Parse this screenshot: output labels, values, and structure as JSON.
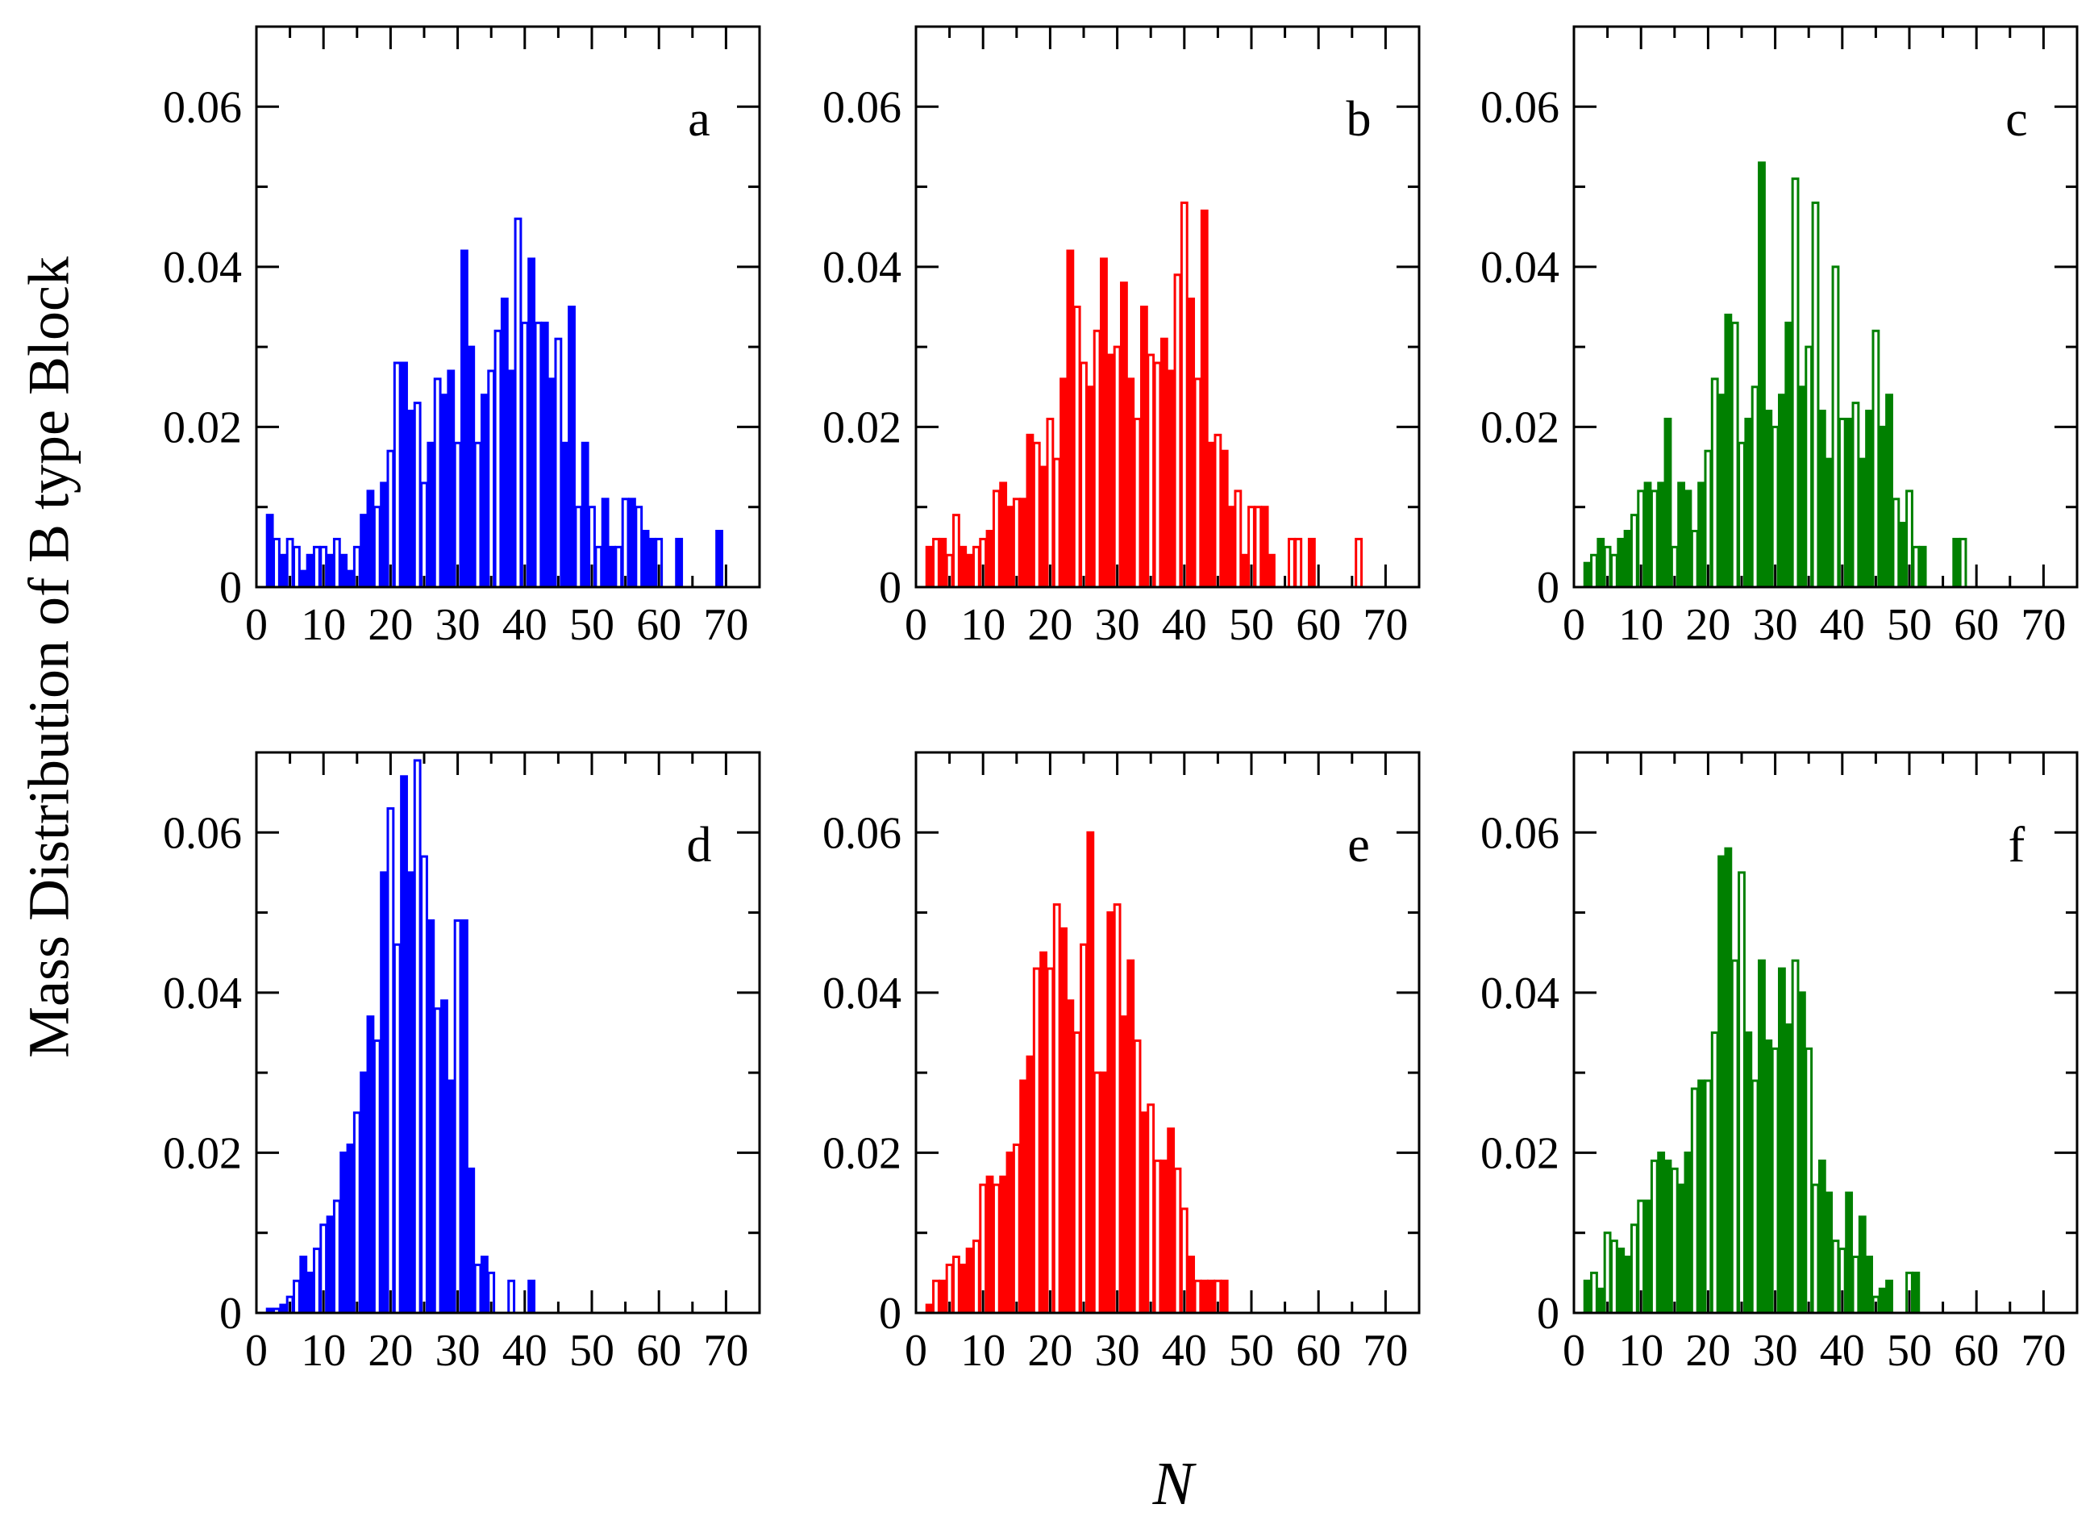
{
  "figure": {
    "ylabel": "Mass Distribution of B type Block",
    "xlabel": "N"
  },
  "chart_data": [
    {
      "type": "bar",
      "panel": "a",
      "color": "#0000ff",
      "xlim": [
        0,
        75
      ],
      "ylim": [
        0,
        0.07
      ],
      "xticks": [
        0,
        10,
        20,
        30,
        40,
        50,
        60,
        70
      ],
      "yticks": [
        0,
        0.02,
        0.04,
        0.06
      ],
      "x": [
        2,
        3,
        4,
        5,
        6,
        7,
        8,
        9,
        10,
        11,
        12,
        13,
        14,
        15,
        16,
        17,
        18,
        19,
        20,
        21,
        22,
        23,
        24,
        25,
        26,
        27,
        28,
        29,
        30,
        31,
        32,
        33,
        34,
        35,
        36,
        37,
        38,
        39,
        40,
        41,
        42,
        43,
        44,
        45,
        46,
        47,
        48,
        49,
        50,
        51,
        52,
        53,
        54,
        55,
        56,
        57,
        58,
        59,
        60,
        63,
        69
      ],
      "values": [
        0.009,
        0.006,
        0.004,
        0.006,
        0.005,
        0.002,
        0.004,
        0.005,
        0.005,
        0.004,
        0.006,
        0.004,
        0.002,
        0.005,
        0.009,
        0.012,
        0.01,
        0.013,
        0.017,
        0.028,
        0.028,
        0.022,
        0.023,
        0.013,
        0.018,
        0.026,
        0.024,
        0.027,
        0.018,
        0.042,
        0.03,
        0.018,
        0.024,
        0.027,
        0.032,
        0.036,
        0.027,
        0.046,
        0.033,
        0.041,
        0.033,
        0.033,
        0.026,
        0.031,
        0.018,
        0.035,
        0.01,
        0.018,
        0.01,
        0.005,
        0.011,
        0.005,
        0.005,
        0.011,
        0.011,
        0.01,
        0.007,
        0.006,
        0.006,
        0.006,
        0.007
      ]
    },
    {
      "type": "bar",
      "panel": "b",
      "color": "#ff0000",
      "xlim": [
        0,
        75
      ],
      "ylim": [
        0,
        0.07
      ],
      "xticks": [
        0,
        10,
        20,
        30,
        40,
        50,
        60,
        70
      ],
      "yticks": [
        0,
        0.02,
        0.04,
        0.06
      ],
      "x": [
        2,
        3,
        4,
        5,
        6,
        7,
        8,
        9,
        10,
        11,
        12,
        13,
        14,
        15,
        16,
        17,
        18,
        19,
        20,
        21,
        22,
        23,
        24,
        25,
        26,
        27,
        28,
        29,
        30,
        31,
        32,
        33,
        34,
        35,
        36,
        37,
        38,
        39,
        40,
        41,
        42,
        43,
        44,
        45,
        46,
        47,
        48,
        49,
        50,
        51,
        52,
        53,
        56,
        57,
        59,
        66
      ],
      "values": [
        0.005,
        0.006,
        0.006,
        0.004,
        0.009,
        0.005,
        0.004,
        0.005,
        0.006,
        0.007,
        0.012,
        0.013,
        0.01,
        0.011,
        0.011,
        0.019,
        0.018,
        0.015,
        0.021,
        0.016,
        0.026,
        0.042,
        0.035,
        0.028,
        0.025,
        0.032,
        0.041,
        0.029,
        0.03,
        0.038,
        0.026,
        0.021,
        0.035,
        0.029,
        0.028,
        0.031,
        0.027,
        0.039,
        0.048,
        0.036,
        0.026,
        0.047,
        0.018,
        0.019,
        0.017,
        0.01,
        0.012,
        0.004,
        0.01,
        0.01,
        0.01,
        0.004,
        0.006,
        0.006,
        0.006,
        0.006
      ]
    },
    {
      "type": "bar",
      "panel": "c",
      "color": "#008000",
      "xlim": [
        0,
        75
      ],
      "ylim": [
        0,
        0.07
      ],
      "xticks": [
        0,
        10,
        20,
        30,
        40,
        50,
        60,
        70
      ],
      "yticks": [
        0,
        0.02,
        0.04,
        0.06
      ],
      "x": [
        2,
        3,
        4,
        5,
        6,
        7,
        8,
        9,
        10,
        11,
        12,
        13,
        14,
        15,
        16,
        17,
        18,
        19,
        20,
        21,
        22,
        23,
        24,
        25,
        26,
        27,
        28,
        29,
        30,
        31,
        32,
        33,
        34,
        35,
        36,
        37,
        38,
        39,
        40,
        41,
        42,
        43,
        44,
        45,
        46,
        47,
        48,
        49,
        50,
        51,
        52,
        57,
        58
      ],
      "values": [
        0.003,
        0.004,
        0.006,
        0.005,
        0.004,
        0.006,
        0.007,
        0.009,
        0.012,
        0.013,
        0.012,
        0.013,
        0.021,
        0.005,
        0.013,
        0.012,
        0.007,
        0.013,
        0.017,
        0.026,
        0.024,
        0.034,
        0.033,
        0.018,
        0.021,
        0.025,
        0.053,
        0.022,
        0.02,
        0.024,
        0.033,
        0.051,
        0.025,
        0.03,
        0.048,
        0.022,
        0.016,
        0.04,
        0.021,
        0.021,
        0.023,
        0.016,
        0.022,
        0.032,
        0.02,
        0.024,
        0.011,
        0.008,
        0.012,
        0.005,
        0.005,
        0.006,
        0.006
      ]
    },
    {
      "type": "bar",
      "panel": "d",
      "color": "#0000ff",
      "xlim": [
        0,
        75
      ],
      "ylim": [
        0,
        0.07
      ],
      "xticks": [
        0,
        10,
        20,
        30,
        40,
        50,
        60,
        70
      ],
      "yticks": [
        0,
        0.02,
        0.04,
        0.06
      ],
      "x": [
        2,
        3,
        4,
        5,
        6,
        7,
        8,
        9,
        10,
        11,
        12,
        13,
        14,
        15,
        16,
        17,
        18,
        19,
        20,
        21,
        22,
        23,
        24,
        25,
        26,
        27,
        28,
        29,
        30,
        31,
        32,
        33,
        34,
        35,
        38,
        41
      ],
      "values": [
        0.0005,
        0.0005,
        0.001,
        0.002,
        0.004,
        0.007,
        0.005,
        0.008,
        0.011,
        0.012,
        0.014,
        0.02,
        0.021,
        0.025,
        0.03,
        0.037,
        0.034,
        0.055,
        0.063,
        0.046,
        0.067,
        0.055,
        0.069,
        0.057,
        0.049,
        0.038,
        0.039,
        0.029,
        0.049,
        0.049,
        0.018,
        0.006,
        0.007,
        0.005,
        0.004,
        0.004
      ]
    },
    {
      "type": "bar",
      "panel": "e",
      "color": "#ff0000",
      "xlim": [
        0,
        75
      ],
      "ylim": [
        0,
        0.07
      ],
      "xticks": [
        0,
        10,
        20,
        30,
        40,
        50,
        60,
        70
      ],
      "yticks": [
        0,
        0.02,
        0.04,
        0.06
      ],
      "x": [
        2,
        3,
        4,
        5,
        6,
        7,
        8,
        9,
        10,
        11,
        12,
        13,
        14,
        15,
        16,
        17,
        18,
        19,
        20,
        21,
        22,
        23,
        24,
        25,
        26,
        27,
        28,
        29,
        30,
        31,
        32,
        33,
        34,
        35,
        36,
        37,
        38,
        39,
        40,
        41,
        42,
        43,
        44,
        45,
        46
      ],
      "values": [
        0.001,
        0.004,
        0.004,
        0.006,
        0.007,
        0.006,
        0.008,
        0.009,
        0.016,
        0.017,
        0.016,
        0.017,
        0.02,
        0.021,
        0.029,
        0.032,
        0.043,
        0.045,
        0.043,
        0.051,
        0.048,
        0.039,
        0.035,
        0.046,
        0.06,
        0.03,
        0.03,
        0.05,
        0.051,
        0.037,
        0.044,
        0.034,
        0.025,
        0.026,
        0.019,
        0.019,
        0.023,
        0.018,
        0.013,
        0.007,
        0.004,
        0.004,
        0.004,
        0.004,
        0.004
      ]
    },
    {
      "type": "bar",
      "panel": "f",
      "color": "#008000",
      "xlim": [
        0,
        75
      ],
      "ylim": [
        0,
        0.07
      ],
      "xticks": [
        0,
        10,
        20,
        30,
        40,
        50,
        60,
        70
      ],
      "yticks": [
        0,
        0.02,
        0.04,
        0.06
      ],
      "x": [
        2,
        3,
        4,
        5,
        6,
        7,
        8,
        9,
        10,
        11,
        12,
        13,
        14,
        15,
        16,
        17,
        18,
        19,
        20,
        21,
        22,
        23,
        24,
        25,
        26,
        27,
        28,
        29,
        30,
        31,
        32,
        33,
        34,
        35,
        36,
        37,
        38,
        39,
        40,
        41,
        42,
        43,
        44,
        45,
        46,
        47,
        50,
        51
      ],
      "values": [
        0.004,
        0.005,
        0.003,
        0.01,
        0.009,
        0.008,
        0.007,
        0.011,
        0.014,
        0.014,
        0.019,
        0.02,
        0.019,
        0.018,
        0.016,
        0.02,
        0.028,
        0.029,
        0.029,
        0.035,
        0.057,
        0.058,
        0.044,
        0.055,
        0.035,
        0.029,
        0.044,
        0.034,
        0.033,
        0.043,
        0.036,
        0.044,
        0.04,
        0.033,
        0.016,
        0.019,
        0.015,
        0.009,
        0.008,
        0.015,
        0.007,
        0.012,
        0.007,
        0.002,
        0.003,
        0.004,
        0.005,
        0.005
      ]
    }
  ]
}
